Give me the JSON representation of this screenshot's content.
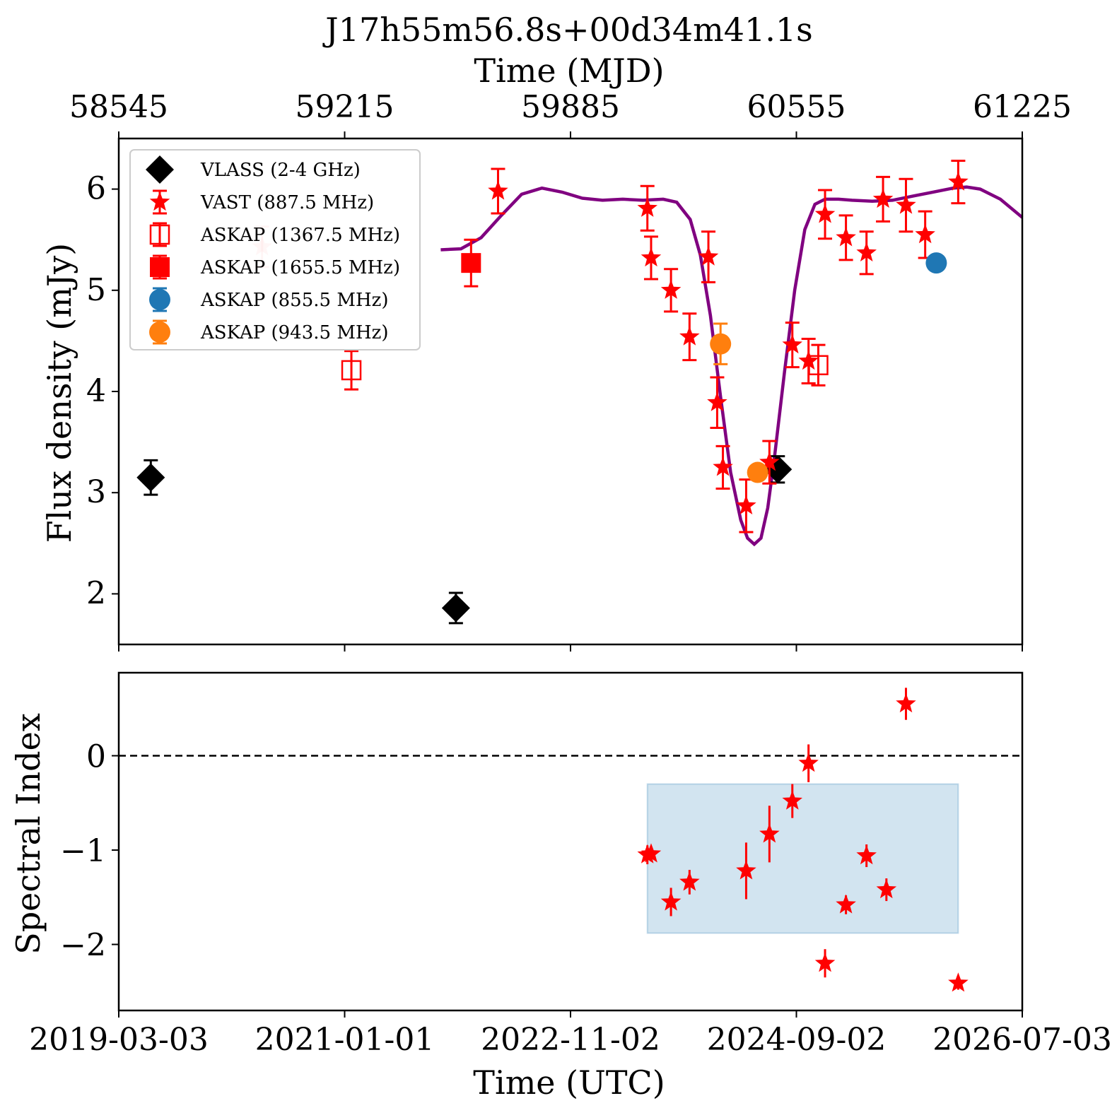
{
  "title": "J17h55m56.8s+00d34m41.1s",
  "top_axis": {
    "label": "Time (MJD)",
    "ticks": [
      "58545",
      "59215",
      "59885",
      "60555",
      "61225"
    ]
  },
  "bottom_axis": {
    "label": "Time (UTC)",
    "ticks": [
      "2019-03-03",
      "2021-01-01",
      "2022-11-02",
      "2024-09-02",
      "2026-07-03"
    ]
  },
  "colors": {
    "vlass": "#000000",
    "vast": "#ff0000",
    "askap_855": "#1f77b4",
    "askap_943": "#ff7f0e",
    "model": "#800080",
    "band": "#1f77b4"
  },
  "chart_data": [
    {
      "type": "scatter",
      "panel": "flux",
      "ylabel": "Flux density (mJy)",
      "xlim_mjd": [
        58545,
        61225
      ],
      "ylim": [
        1.5,
        6.5
      ],
      "yticks": [
        2,
        3,
        4,
        5,
        6
      ],
      "legend_position": "top-left",
      "series": [
        {
          "name": "VLASS (2-4 GHz)",
          "marker": "diamond",
          "color": "#000000",
          "x_mjd": [
            58640,
            59545,
            60500
          ],
          "y": [
            3.15,
            1.86,
            3.23
          ],
          "yerr": [
            0.17,
            0.15,
            0.13
          ]
        },
        {
          "name": "VAST (887.5 MHz)",
          "marker": "star",
          "color": "#ff0000",
          "x_mjd": [
            58970,
            59670,
            60113,
            60124,
            60183,
            60238,
            60294,
            60320,
            60337,
            60406,
            60475,
            60543,
            60591,
            60640,
            60702,
            60763,
            60812,
            60880,
            60937,
            61035
          ],
          "y": [
            5.43,
            5.98,
            5.81,
            5.32,
            5.0,
            4.54,
            5.33,
            3.89,
            3.25,
            2.87,
            3.3,
            4.46,
            4.3,
            5.75,
            5.52,
            5.37,
            5.9,
            5.84,
            5.55,
            6.07
          ],
          "yerr": [
            0.2,
            0.22,
            0.22,
            0.21,
            0.21,
            0.23,
            0.25,
            0.25,
            0.21,
            0.26,
            0.21,
            0.22,
            0.22,
            0.24,
            0.22,
            0.21,
            0.22,
            0.26,
            0.23,
            0.21
          ],
          "faded_points": 1
        },
        {
          "name": "ASKAP (1367.5 MHz)",
          "marker": "open-square",
          "color": "#ff0000",
          "x_mjd": [
            59235,
            60620
          ],
          "y": [
            4.21,
            4.26
          ],
          "yerr": [
            0.19,
            0.2
          ]
        },
        {
          "name": "ASKAP (1655.5 MHz)",
          "marker": "square",
          "color": "#ff0000",
          "x_mjd": [
            59590
          ],
          "y": [
            5.27
          ],
          "yerr": [
            0.23
          ]
        },
        {
          "name": "ASKAP (855.5 MHz)",
          "marker": "circle",
          "color": "#1f77b4",
          "x_mjd": [
            60970
          ],
          "y": [
            5.27
          ],
          "yerr": [
            0.04
          ]
        },
        {
          "name": "ASKAP (943.5 MHz)",
          "marker": "circle",
          "color": "#ff7f0e",
          "x_mjd": [
            60330,
            60440
          ],
          "y": [
            4.47,
            3.2
          ],
          "yerr": [
            0.2,
            0.05
          ]
        }
      ],
      "model_curve": {
        "color": "#800080",
        "x_mjd": [
          59500,
          59560,
          59620,
          59680,
          59740,
          59800,
          59860,
          59920,
          59980,
          60040,
          60100,
          60160,
          60200,
          60240,
          60270,
          60300,
          60330,
          60360,
          60390,
          60410,
          60430,
          60450,
          60470,
          60490,
          60520,
          60550,
          60580,
          60610,
          60640,
          60680,
          60720,
          60780,
          60840,
          60900,
          60960,
          61020,
          61060,
          61100,
          61160,
          61225
        ],
        "y": [
          5.4,
          5.41,
          5.52,
          5.74,
          5.95,
          6.01,
          5.97,
          5.91,
          5.89,
          5.9,
          5.89,
          5.9,
          5.87,
          5.7,
          5.35,
          4.75,
          3.95,
          3.2,
          2.73,
          2.55,
          2.49,
          2.55,
          2.85,
          3.35,
          4.2,
          5.0,
          5.6,
          5.85,
          5.9,
          5.9,
          5.89,
          5.88,
          5.89,
          5.93,
          5.97,
          6.01,
          6.02,
          6.0,
          5.9,
          5.72
        ]
      }
    },
    {
      "type": "scatter",
      "panel": "spectral_index",
      "ylabel": "Spectral Index",
      "ylim": [
        -2.7,
        0.88
      ],
      "yticks": [
        -2,
        -1,
        0
      ],
      "reference_line": 0,
      "band": {
        "x_mjd": [
          60113,
          61035
        ],
        "y": [
          -1.88,
          -0.3
        ]
      },
      "series": [
        {
          "marker": "star",
          "color": "#ff0000",
          "x_mjd": [
            60113,
            60124,
            60183,
            60238,
            60406,
            60475,
            60543,
            60591,
            60640,
            60702,
            60763,
            60822,
            60880,
            61035
          ],
          "y": [
            -1.05,
            -1.04,
            -1.55,
            -1.34,
            -1.22,
            -0.83,
            -0.48,
            -0.08,
            -2.2,
            -1.58,
            -1.06,
            -1.42,
            0.55,
            -2.41
          ],
          "yerr": [
            0.1,
            0.08,
            0.15,
            0.13,
            0.3,
            0.3,
            0.18,
            0.2,
            0.15,
            0.1,
            0.12,
            0.12,
            0.17,
            0.07
          ]
        }
      ]
    }
  ]
}
